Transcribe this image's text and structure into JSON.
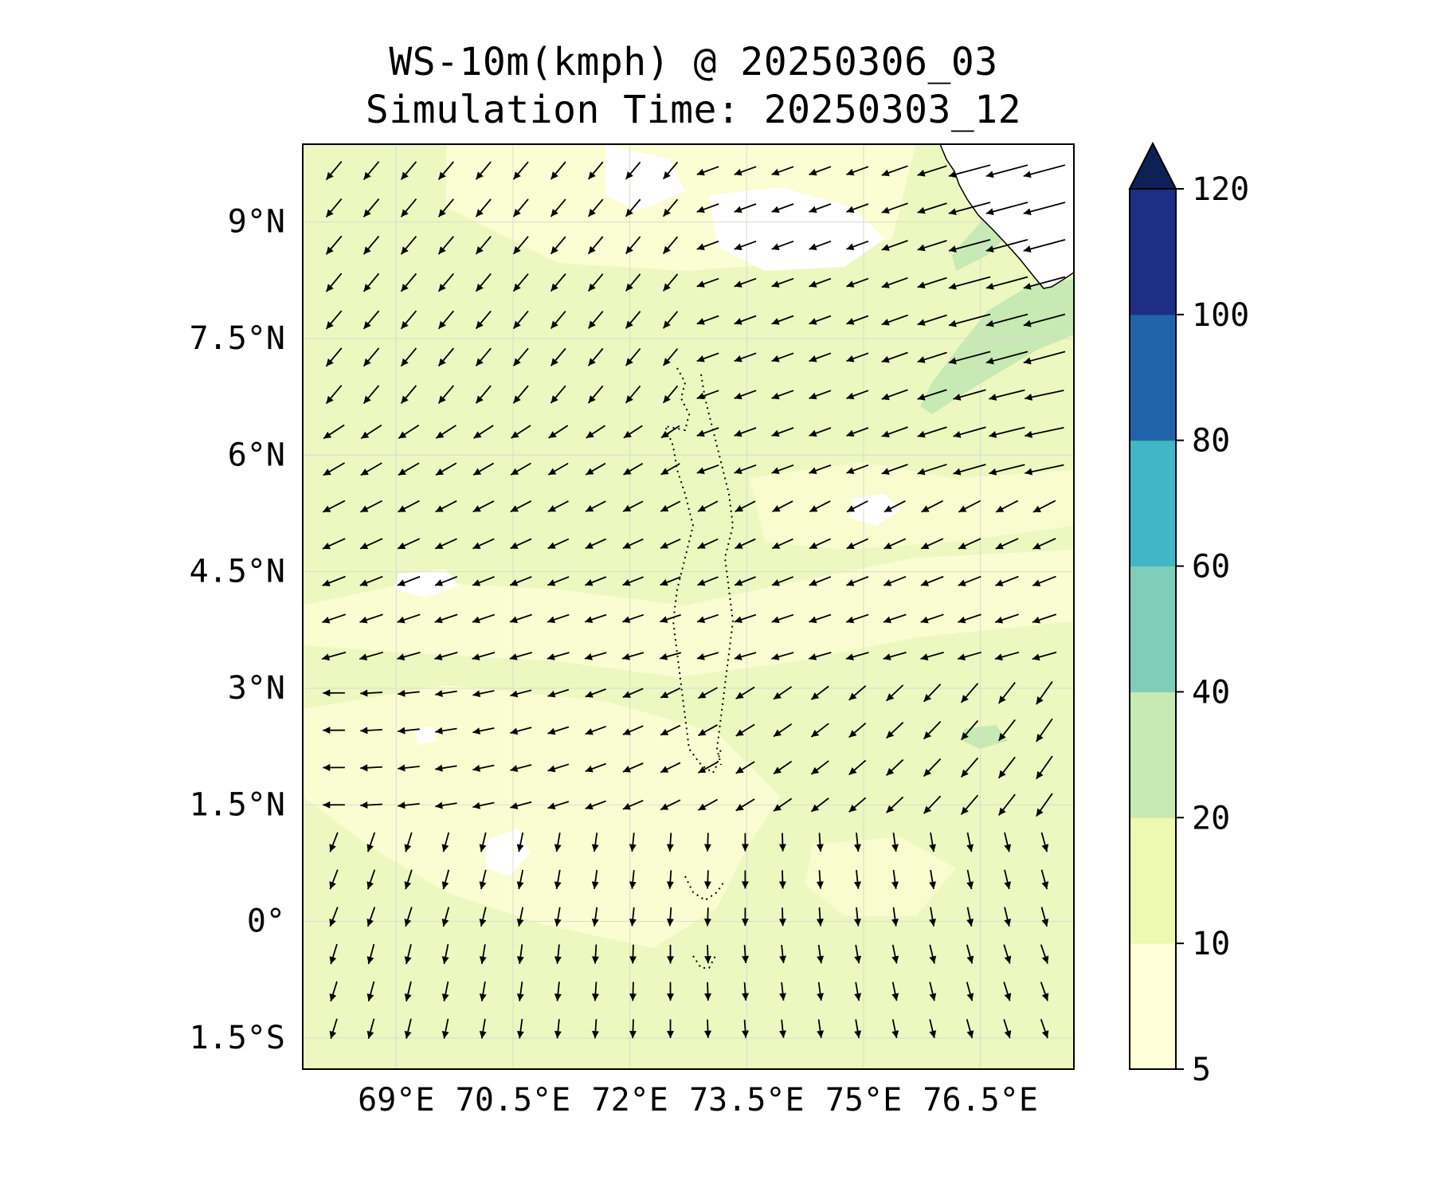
{
  "title": {
    "line1": "WS-10m(kmph) @ 20250306_03",
    "line2": "Simulation Time: 20250303_12"
  },
  "map": {
    "lon_range": [
      67.8,
      77.7
    ],
    "lat_range": [
      -1.9,
      10.0
    ],
    "lat_ticks": [
      {
        "value": 9.0,
        "label": "9°N"
      },
      {
        "value": 7.5,
        "label": "7.5°N"
      },
      {
        "value": 6.0,
        "label": "6°N"
      },
      {
        "value": 4.5,
        "label": "4.5°N"
      },
      {
        "value": 3.0,
        "label": "3°N"
      },
      {
        "value": 1.5,
        "label": "1.5°N"
      },
      {
        "value": 0.0,
        "label": "0°"
      },
      {
        "value": -1.5,
        "label": "1.5°S"
      }
    ],
    "lon_ticks": [
      {
        "value": 69.0,
        "label": "69°E"
      },
      {
        "value": 70.5,
        "label": "70.5°E"
      },
      {
        "value": 72.0,
        "label": "72°E"
      },
      {
        "value": 73.5,
        "label": "73.5°E"
      },
      {
        "value": 75.0,
        "label": "75°E"
      },
      {
        "value": 76.5,
        "label": "76.5°E"
      }
    ],
    "background_color": "#edf7c0",
    "gridlines": true
  },
  "colorbar": {
    "levels": [
      5,
      10,
      20,
      40,
      60,
      80,
      100,
      120
    ],
    "labels": [
      "5",
      "10",
      "20",
      "40",
      "60",
      "80",
      "100",
      "120"
    ],
    "colors": [
      "#ffffd9",
      "#edf8b1",
      "#c7e9b4",
      "#7fcdbb",
      "#41b6c4",
      "#2264a8",
      "#1d2f82"
    ],
    "extend_color": "#0c2157",
    "extend": "max"
  },
  "chart_data": {
    "type": "wind-vector-field",
    "variable": "WS-10m(kmph)",
    "wind_field_regions": [
      {
        "region": "north-west (lat > 7, lon < 73)",
        "direction": "toward south-west",
        "speed_kmph": 12
      },
      {
        "region": "north-east near coast (lat 6-8, lon > 75.5)",
        "direction": "toward west-south-west",
        "speed_kmph": 25
      },
      {
        "region": "central (lat 3-6)",
        "direction": "toward west / south-west",
        "speed_kmph": 14
      },
      {
        "region": "south-east (lat < 3, lon > 74)",
        "direction": "toward south",
        "speed_kmph": 12
      },
      {
        "region": "south-west (lat < 1.5, lon < 71)",
        "direction": "toward south",
        "speed_kmph": 8
      }
    ],
    "speed_range_kmph": [
      5,
      30
    ]
  }
}
